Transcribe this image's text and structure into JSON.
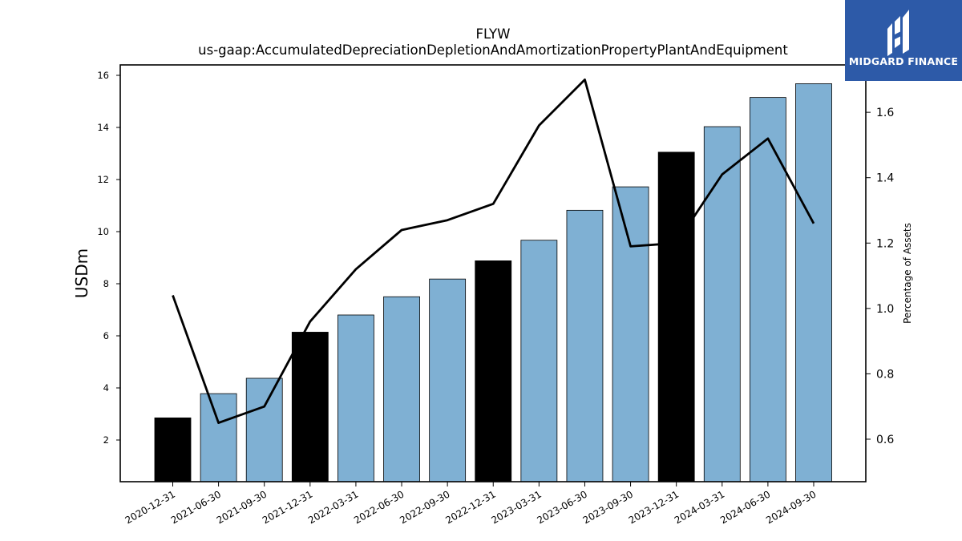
{
  "chart_data": {
    "type": "bar",
    "title": "FLYW",
    "subtitle": "us-gaap:AccumulatedDepreciationDepletionAndAmortizationPropertyPlantAndEquipment",
    "ylabel": "USDm",
    "y2label": "Percentage of Assets",
    "categories": [
      "2020-12-31",
      "2021-06-30",
      "2021-09-30",
      "2021-12-31",
      "2022-03-31",
      "2022-06-30",
      "2022-09-30",
      "2022-12-31",
      "2023-03-31",
      "2023-06-30",
      "2023-09-30",
      "2023-12-31",
      "2024-03-31",
      "2024-06-30",
      "2024-09-30"
    ],
    "series": [
      {
        "axis": "left",
        "type": "bar",
        "values": [
          2.85,
          3.78,
          4.37,
          6.14,
          6.8,
          7.5,
          8.18,
          8.88,
          9.67,
          10.82,
          11.72,
          13.05,
          14.03,
          15.15,
          15.68
        ],
        "bar_colors": [
          "#000000",
          "#7fb0d3",
          "#7fb0d3",
          "#000000",
          "#7fb0d3",
          "#7fb0d3",
          "#7fb0d3",
          "#000000",
          "#7fb0d3",
          "#7fb0d3",
          "#7fb0d3",
          "#000000",
          "#7fb0d3",
          "#7fb0d3",
          "#7fb0d3"
        ]
      },
      {
        "axis": "right",
        "type": "line",
        "color": "#000000",
        "values": [
          1.04,
          0.65,
          0.7,
          0.96,
          1.12,
          1.24,
          1.27,
          1.32,
          1.56,
          1.7,
          1.19,
          1.2,
          1.41,
          1.52,
          1.26
        ]
      }
    ],
    "ylim": [
      0.4,
      16.4
    ],
    "yticks": [
      2,
      4,
      6,
      8,
      10,
      12,
      14,
      16
    ],
    "y2lim": [
      0.47,
      1.745
    ],
    "y2ticks": [
      0.6,
      0.8,
      1.0,
      1.2,
      1.4,
      1.6
    ],
    "y2tick_labels": [
      "0.6",
      "0.8",
      "1.0",
      "1.2",
      "1.4",
      "1.6"
    ],
    "grid": false
  },
  "logo": {
    "text": "MIDGARD FINANCE",
    "color": "#2d5aa8"
  }
}
